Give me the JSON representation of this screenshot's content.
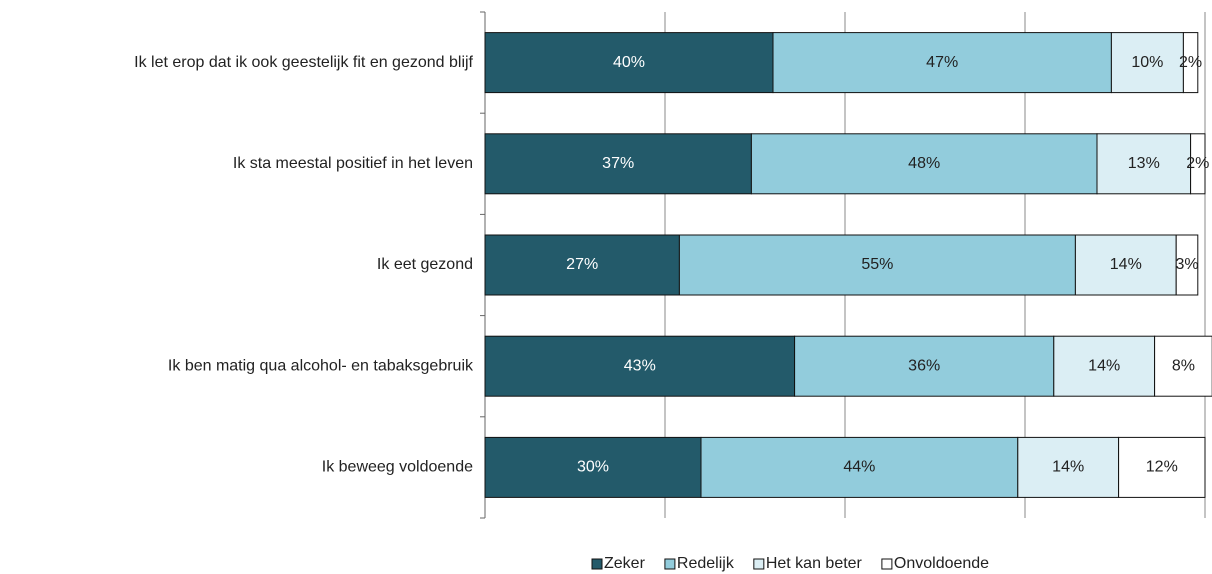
{
  "chart_data": {
    "type": "stacked-bar-horizontal",
    "categories": [
      "Ik let erop dat ik ook geestelijk fit en gezond blijf",
      "Ik sta meestal positief in het leven",
      "Ik eet gezond",
      "Ik ben matig qua alcohol- en tabaksgebruik",
      "Ik beweeg voldoende"
    ],
    "series": [
      {
        "name": "Zeker",
        "color": "#235a6a",
        "values": [
          40,
          37,
          27,
          43,
          30
        ],
        "value_labels": [
          "40%",
          "37%",
          "27%",
          "43%",
          "30%"
        ]
      },
      {
        "name": "Redelijk",
        "color": "#92ccdc",
        "values": [
          47,
          48,
          55,
          36,
          44
        ],
        "value_labels": [
          "47%",
          "48%",
          "55%",
          "36%",
          "44%"
        ]
      },
      {
        "name": "Het kan beter",
        "color": "#dbeef4",
        "values": [
          10,
          13,
          14,
          14,
          14
        ],
        "value_labels": [
          "10%",
          "13%",
          "14%",
          "14%",
          "14%"
        ]
      },
      {
        "name": "Onvoldoende",
        "color": "#ffffff",
        "values": [
          2,
          2,
          3,
          8,
          12
        ],
        "value_labels": [
          "2%",
          "2%",
          "3%",
          "8%",
          "12%"
        ]
      }
    ],
    "xlim": [
      0,
      100
    ],
    "xticks": [
      0,
      25,
      50,
      75,
      100
    ],
    "grid": true,
    "legend": "bottom"
  }
}
